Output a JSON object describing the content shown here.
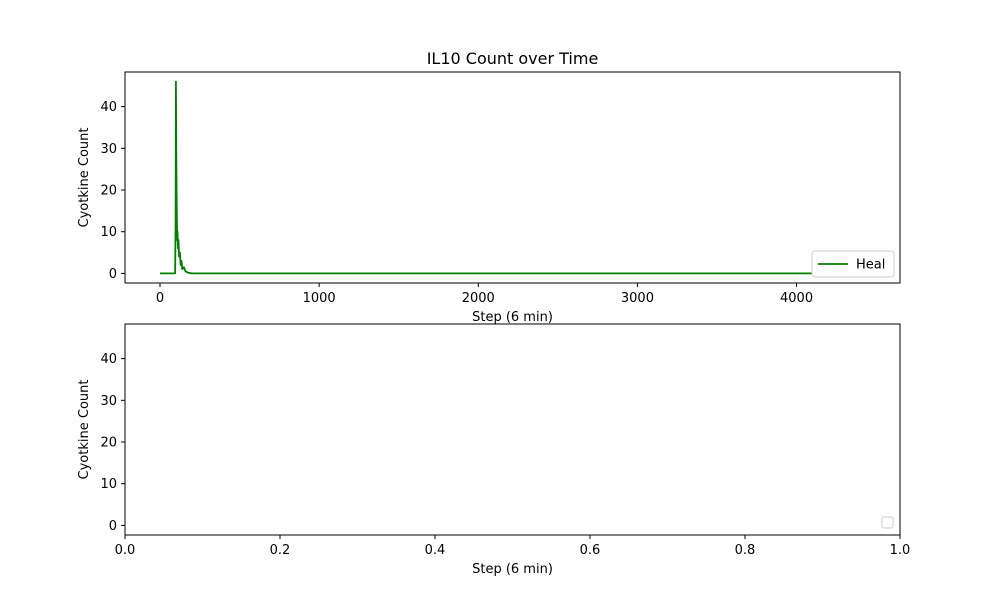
{
  "chart_data": [
    {
      "type": "line",
      "title": "IL10 Count over Time",
      "xlabel": "Step (6 min)",
      "ylabel": "Cyotkine Count",
      "xlim": [
        -220,
        4650
      ],
      "ylim": [
        -2.3,
        48.3
      ],
      "xticks": [
        0,
        1000,
        2000,
        3000,
        4000
      ],
      "yticks": [
        0,
        10,
        20,
        30,
        40
      ],
      "legend": {
        "position": "lower-right",
        "entries": [
          "Heal"
        ]
      },
      "series": [
        {
          "name": "Heal",
          "color": "#008000",
          "x": [
            0,
            60,
            95,
            98,
            100,
            102,
            104,
            106,
            108,
            110,
            113,
            116,
            120,
            125,
            130,
            135,
            140,
            150,
            160,
            175,
            200,
            300,
            1000,
            2000,
            3000,
            4000,
            4430
          ],
          "y": [
            0,
            0,
            0,
            12,
            46,
            30,
            20,
            13,
            8,
            10,
            6,
            8,
            4,
            5,
            2,
            3,
            1,
            1.5,
            0.5,
            0.2,
            0,
            0,
            0,
            0,
            0,
            0,
            0
          ]
        }
      ]
    },
    {
      "type": "line",
      "title": "",
      "xlabel": "Step (6 min)",
      "ylabel": "Cyotkine Count",
      "xlim": [
        0,
        1
      ],
      "ylim": [
        -2.3,
        48.3
      ],
      "xticks": [
        0.0,
        0.2,
        0.4,
        0.6,
        0.8,
        1.0
      ],
      "xtick_labels": [
        "0.0",
        "0.2",
        "0.4",
        "0.6",
        "0.8",
        "1.0"
      ],
      "yticks": [
        0,
        10,
        20,
        30,
        40
      ],
      "legend": {
        "position": "lower-right",
        "entries": []
      },
      "series": []
    }
  ]
}
